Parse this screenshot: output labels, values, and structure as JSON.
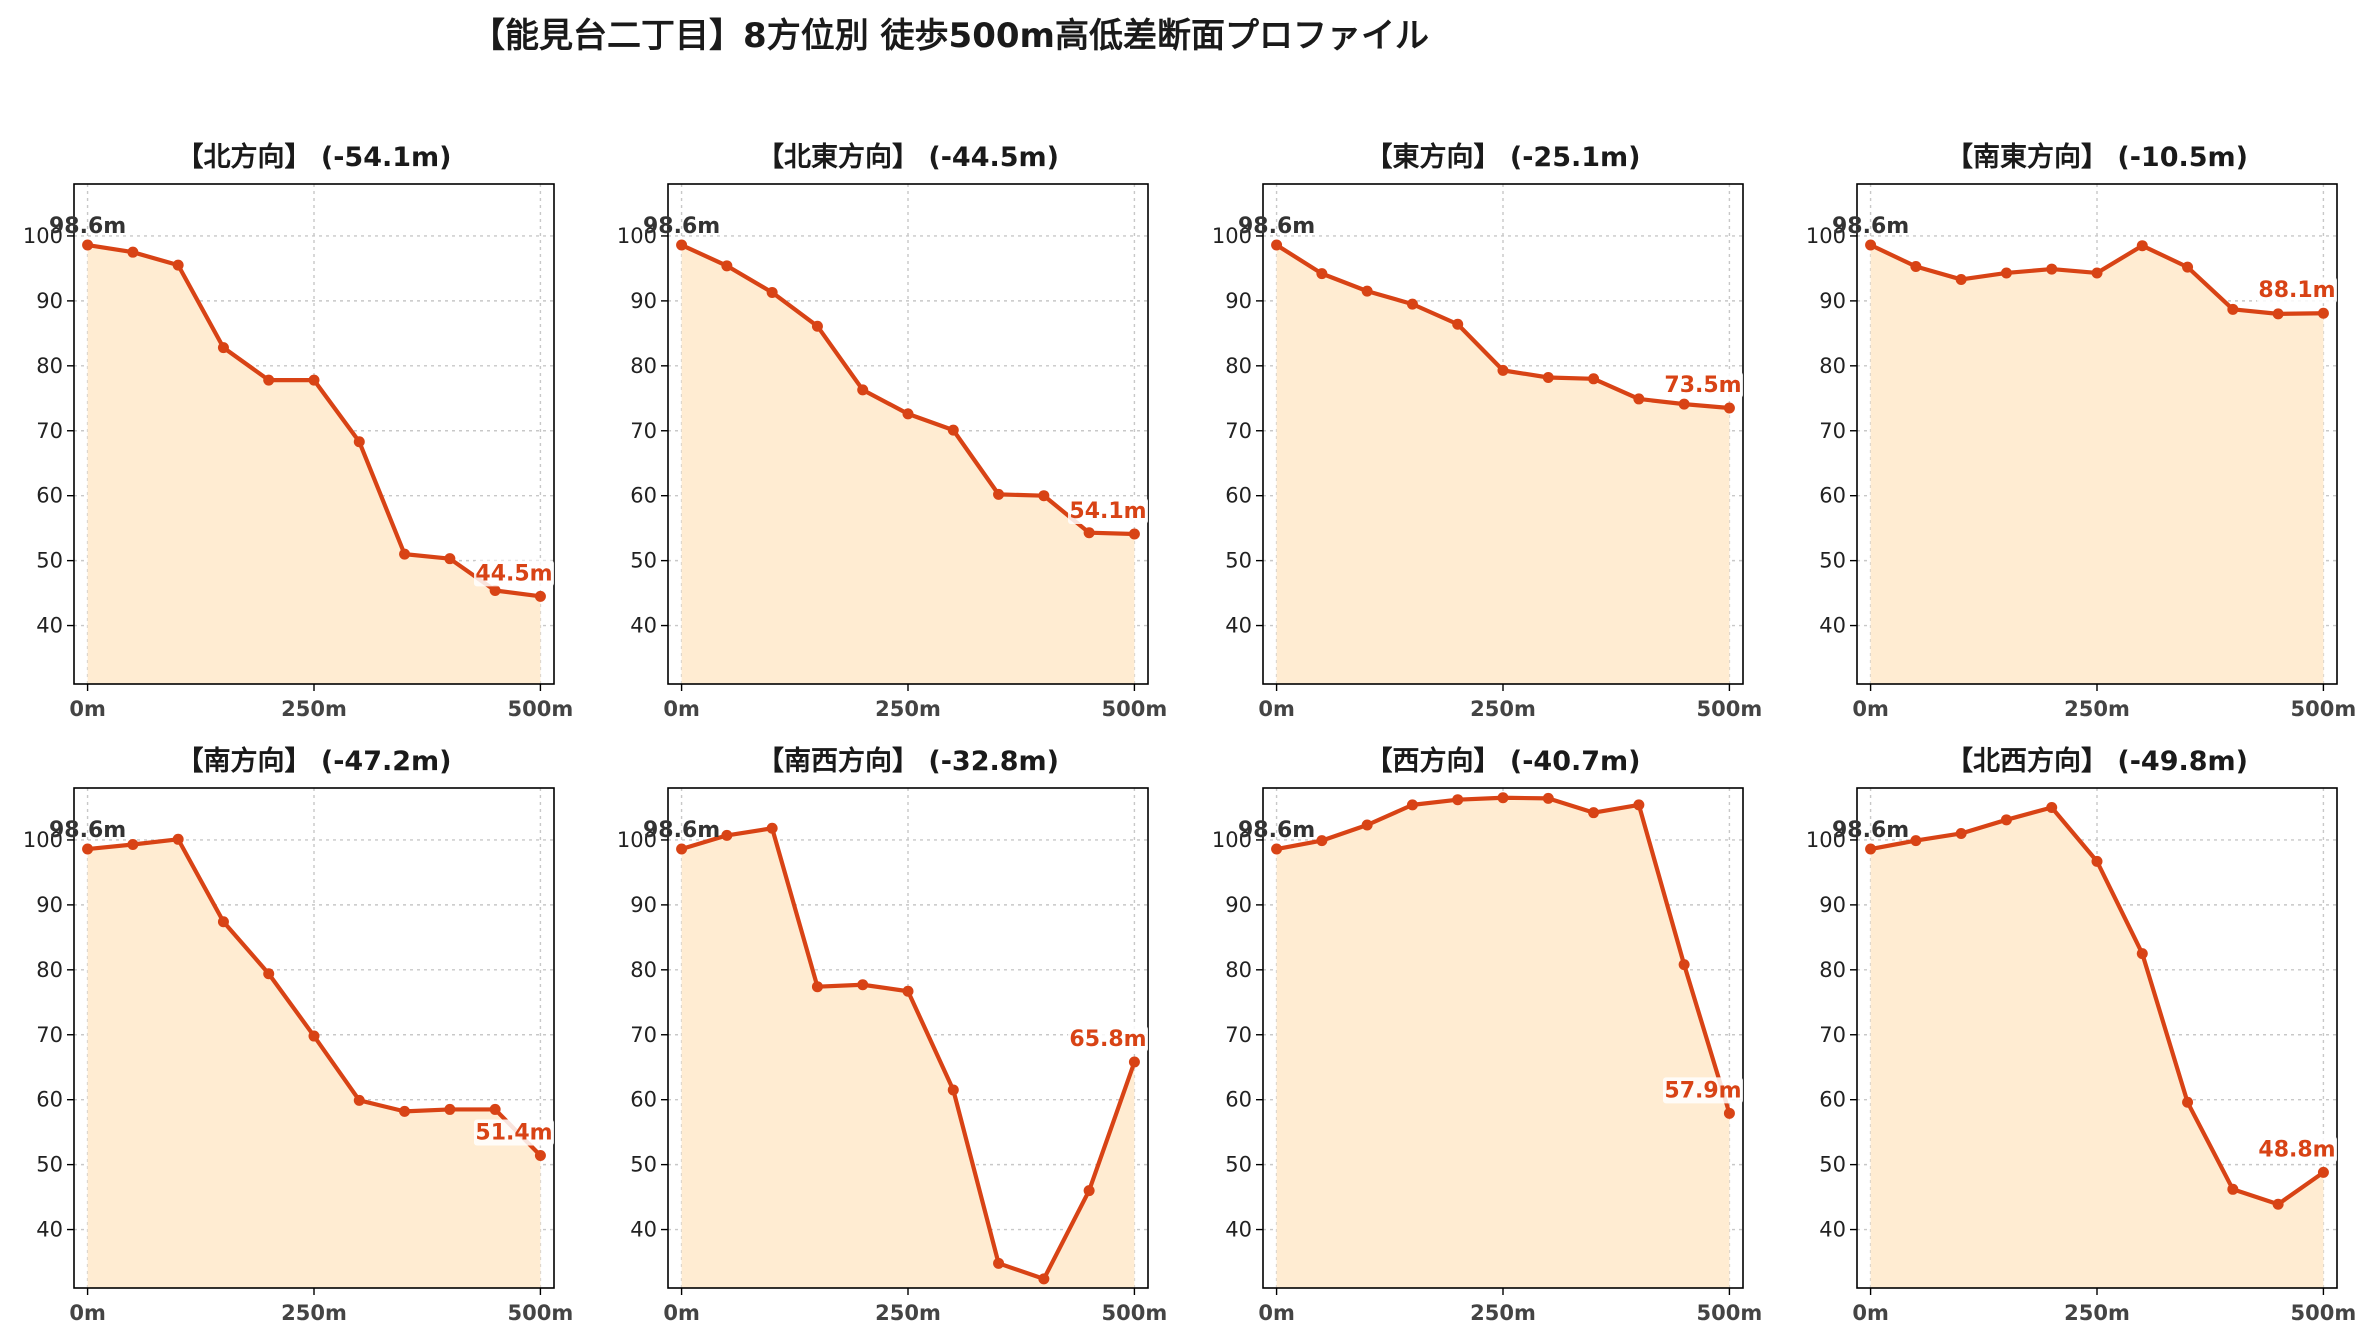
{
  "title": "【能見台二丁目】8方位別 徒歩500m高低差断面プロファイル",
  "colors": {
    "line": "#d84315",
    "fill": "#ffecd2",
    "grid": "#c8c8c8",
    "axis": "#000000"
  },
  "chart_data": [
    {
      "type": "area",
      "title": "【北方向】 (-54.1m)",
      "x": [
        0,
        50,
        100,
        150,
        200,
        250,
        300,
        350,
        400,
        450,
        500
      ],
      "values": [
        98.6,
        97.5,
        95.5,
        82.8,
        77.8,
        77.8,
        68.3,
        51.0,
        50.3,
        45.4,
        44.5
      ],
      "start_label": "98.6m",
      "end_label": "44.5m",
      "xticks": [
        "0m",
        "250m",
        "500m"
      ],
      "yticks": [
        40,
        50,
        60,
        70,
        80,
        90,
        100
      ],
      "xlim": [
        -15,
        515
      ],
      "ylim": [
        31,
        108
      ],
      "grid": true
    },
    {
      "type": "area",
      "title": "【北東方向】 (-44.5m)",
      "x": [
        0,
        50,
        100,
        150,
        200,
        250,
        300,
        350,
        400,
        450,
        500
      ],
      "values": [
        98.6,
        95.4,
        91.3,
        86.1,
        76.3,
        72.6,
        70.1,
        60.2,
        60.0,
        54.3,
        54.1
      ],
      "start_label": "98.6m",
      "end_label": "54.1m",
      "xticks": [
        "0m",
        "250m",
        "500m"
      ],
      "yticks": [
        40,
        50,
        60,
        70,
        80,
        90,
        100
      ],
      "xlim": [
        -15,
        515
      ],
      "ylim": [
        31,
        108
      ],
      "grid": true
    },
    {
      "type": "area",
      "title": "【東方向】 (-25.1m)",
      "x": [
        0,
        50,
        100,
        150,
        200,
        250,
        300,
        350,
        400,
        450,
        500
      ],
      "values": [
        98.6,
        94.2,
        91.5,
        89.5,
        86.4,
        79.3,
        78.2,
        78.0,
        74.9,
        74.1,
        73.5
      ],
      "start_label": "98.6m",
      "end_label": "73.5m",
      "xticks": [
        "0m",
        "250m",
        "500m"
      ],
      "yticks": [
        40,
        50,
        60,
        70,
        80,
        90,
        100
      ],
      "xlim": [
        -15,
        515
      ],
      "ylim": [
        31,
        108
      ],
      "grid": true
    },
    {
      "type": "area",
      "title": "【南東方向】 (-10.5m)",
      "x": [
        0,
        50,
        100,
        150,
        200,
        250,
        300,
        350,
        400,
        450,
        500
      ],
      "values": [
        98.6,
        95.3,
        93.3,
        94.3,
        94.9,
        94.3,
        98.5,
        95.2,
        88.7,
        88.0,
        88.1
      ],
      "start_label": "98.6m",
      "end_label": "88.1m",
      "xticks": [
        "0m",
        "250m",
        "500m"
      ],
      "yticks": [
        40,
        50,
        60,
        70,
        80,
        90,
        100
      ],
      "xlim": [
        -15,
        515
      ],
      "ylim": [
        31,
        108
      ],
      "grid": true
    },
    {
      "type": "area",
      "title": "【南方向】 (-47.2m)",
      "x": [
        0,
        50,
        100,
        150,
        200,
        250,
        300,
        350,
        400,
        450,
        500
      ],
      "values": [
        98.6,
        99.3,
        100.1,
        87.4,
        79.4,
        69.8,
        59.9,
        58.2,
        58.5,
        58.5,
        51.4
      ],
      "start_label": "98.6m",
      "end_label": "51.4m",
      "xticks": [
        "0m",
        "250m",
        "500m"
      ],
      "yticks": [
        40,
        50,
        60,
        70,
        80,
        90,
        100
      ],
      "xlim": [
        -15,
        515
      ],
      "ylim": [
        31,
        108
      ],
      "grid": true
    },
    {
      "type": "area",
      "title": "【南西方向】 (-32.8m)",
      "x": [
        0,
        50,
        100,
        150,
        200,
        250,
        300,
        350,
        400,
        450,
        500
      ],
      "values": [
        98.6,
        100.7,
        101.8,
        77.4,
        77.7,
        76.7,
        61.5,
        34.8,
        32.4,
        46.0,
        65.8
      ],
      "start_label": "98.6m",
      "end_label": "65.8m",
      "xticks": [
        "0m",
        "250m",
        "500m"
      ],
      "yticks": [
        40,
        50,
        60,
        70,
        80,
        90,
        100
      ],
      "xlim": [
        -15,
        515
      ],
      "ylim": [
        31,
        108
      ],
      "grid": true
    },
    {
      "type": "area",
      "title": "【西方向】 (-40.7m)",
      "x": [
        0,
        50,
        100,
        150,
        200,
        250,
        300,
        350,
        400,
        450,
        500
      ],
      "values": [
        98.6,
        99.9,
        102.3,
        105.4,
        106.2,
        106.5,
        106.4,
        104.2,
        105.4,
        80.8,
        57.9
      ],
      "start_label": "98.6m",
      "end_label": "57.9m",
      "xticks": [
        "0m",
        "250m",
        "500m"
      ],
      "yticks": [
        40,
        50,
        60,
        70,
        80,
        90,
        100
      ],
      "xlim": [
        -15,
        515
      ],
      "ylim": [
        31,
        108
      ],
      "grid": true
    },
    {
      "type": "area",
      "title": "【北西方向】 (-49.8m)",
      "x": [
        0,
        50,
        100,
        150,
        200,
        250,
        300,
        350,
        400,
        450,
        500
      ],
      "values": [
        98.6,
        99.9,
        101.0,
        103.1,
        105.0,
        96.7,
        82.5,
        59.6,
        46.2,
        43.9,
        48.8
      ],
      "start_label": "98.6m",
      "end_label": "48.8m",
      "xticks": [
        "0m",
        "250m",
        "500m"
      ],
      "yticks": [
        40,
        50,
        60,
        70,
        80,
        90,
        100
      ],
      "xlim": [
        -15,
        515
      ],
      "ylim": [
        31,
        108
      ],
      "grid": true
    }
  ]
}
